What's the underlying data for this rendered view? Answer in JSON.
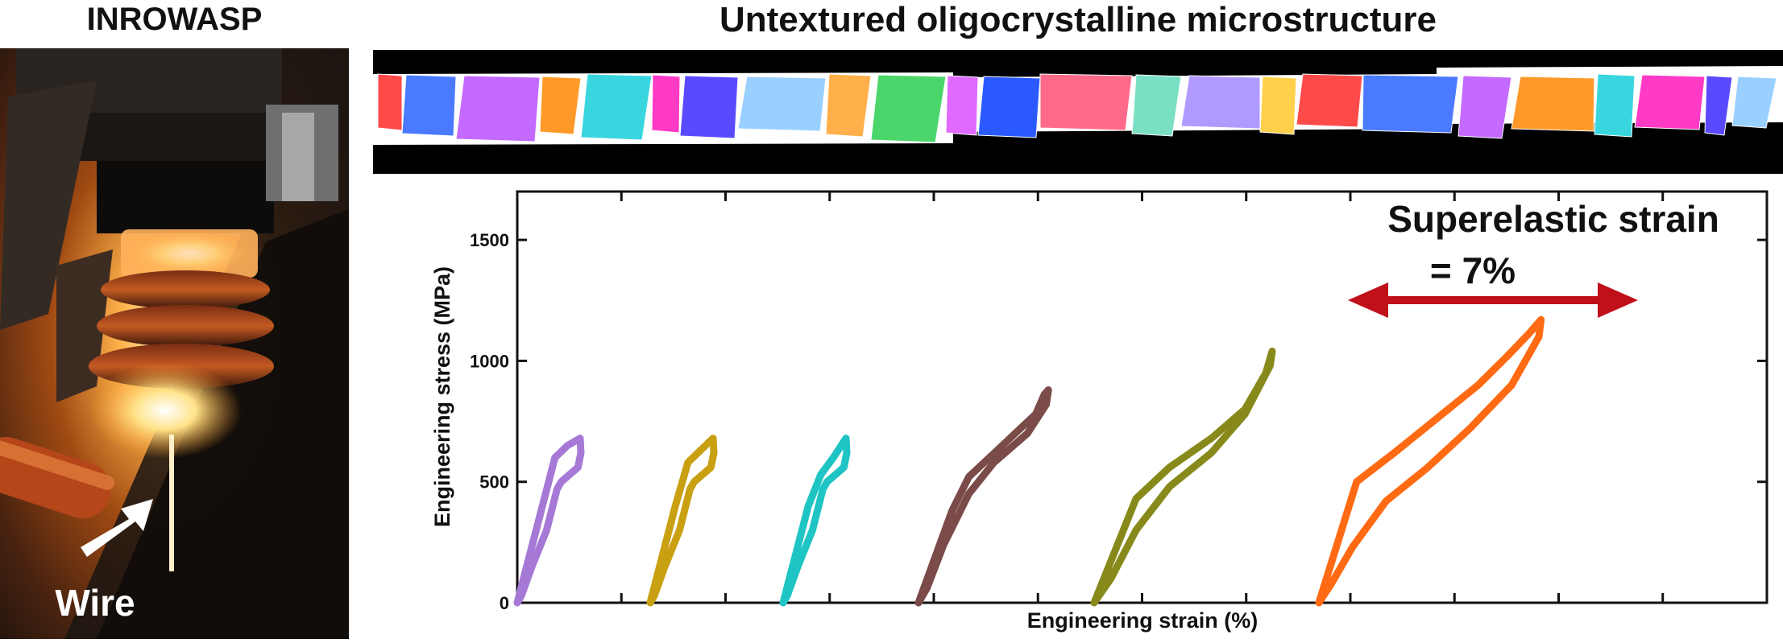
{
  "photo_panel": {
    "title": "INROWASP",
    "wire_label": "Wire"
  },
  "microstructure_panel": {
    "title": "Untextured oligocrystalline microstructure"
  },
  "chart_data": {
    "type": "line",
    "title": "",
    "xlabel": "Engineering strain (%)",
    "ylabel": "Engineering stress (MPa)",
    "ylim": [
      0,
      1700
    ],
    "yticks": [
      0,
      500,
      1000,
      1500
    ],
    "ytick_labels": [
      "0",
      "500",
      "1000",
      "1500"
    ],
    "x_tick_labels_shown": false,
    "grid": false,
    "annotation": {
      "line1": "Superelastic strain",
      "line2": "= 7%",
      "arrow_color": "#c0101a"
    },
    "series": [
      {
        "color": "#a679d6",
        "x": [
          0.0,
          0.6,
          0.9,
          1.2,
          1.5,
          1.52,
          1.45,
          1.05,
          0.95,
          0.7,
          0.35,
          0.1,
          0.0
        ],
        "y": [
          0,
          400,
          600,
          650,
          680,
          620,
          560,
          500,
          470,
          300,
          150,
          30,
          0
        ]
      },
      {
        "color": "#c9a012",
        "x": [
          0.0,
          0.6,
          0.9,
          1.2,
          1.5,
          1.52,
          1.45,
          1.05,
          0.95,
          0.7,
          0.35,
          0.1,
          0.0
        ],
        "y": [
          0,
          400,
          580,
          630,
          680,
          620,
          560,
          500,
          470,
          300,
          150,
          30,
          0
        ]
      },
      {
        "color": "#1fc4c4",
        "x": [
          0.0,
          0.6,
          0.9,
          1.2,
          1.5,
          1.52,
          1.45,
          1.05,
          0.95,
          0.7,
          0.35,
          0.1,
          0.0
        ],
        "y": [
          0,
          400,
          530,
          600,
          680,
          620,
          560,
          500,
          470,
          300,
          150,
          30,
          0
        ]
      },
      {
        "color": "#7a4b48",
        "x": [
          0.0,
          0.8,
          1.2,
          2.0,
          2.8,
          3.0,
          3.1,
          3.05,
          2.6,
          1.8,
          1.2,
          0.6,
          0.2,
          0.0
        ],
        "y": [
          0,
          380,
          520,
          650,
          780,
          860,
          880,
          820,
          700,
          580,
          450,
          240,
          60,
          0
        ]
      },
      {
        "color": "#878a1a",
        "x": [
          0.0,
          1.0,
          1.8,
          2.8,
          3.6,
          4.1,
          4.25,
          4.2,
          3.6,
          2.8,
          1.8,
          1.0,
          0.4,
          0.0
        ],
        "y": [
          0,
          430,
          560,
          680,
          800,
          950,
          1040,
          980,
          780,
          620,
          480,
          300,
          100,
          0
        ]
      },
      {
        "color": "#ff6a12",
        "x": [
          0.0,
          0.9,
          1.8,
          2.8,
          3.8,
          4.5,
          5.0,
          5.3,
          5.25,
          4.6,
          3.6,
          2.6,
          1.6,
          0.8,
          0.3,
          0.0
        ],
        "y": [
          0,
          500,
          620,
          760,
          900,
          1020,
          1110,
          1170,
          1100,
          900,
          720,
          560,
          420,
          230,
          80,
          0
        ]
      }
    ]
  }
}
